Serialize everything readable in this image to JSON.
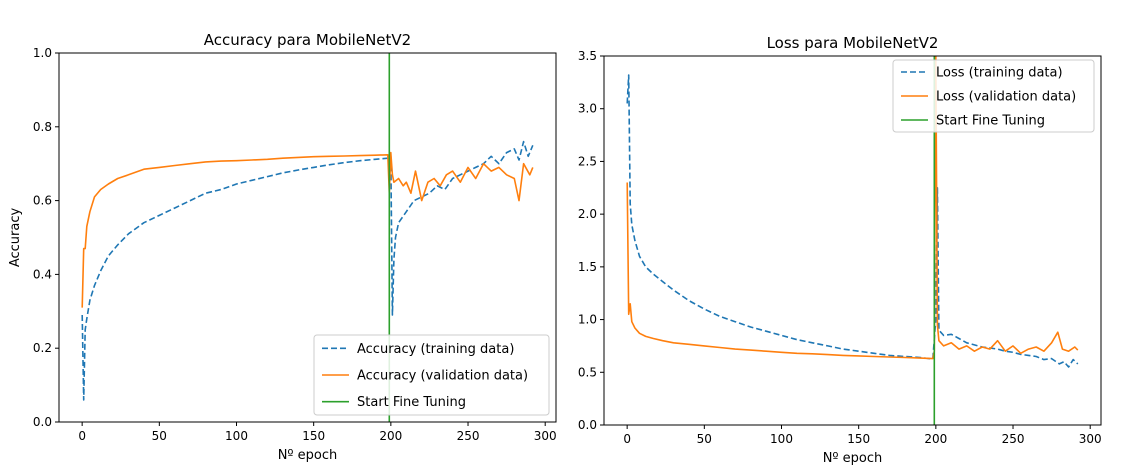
{
  "chart_data": [
    {
      "type": "line",
      "title": "Accuracy para MobileNetV2",
      "xlabel": "Nº epoch",
      "ylabel": "Accuracy",
      "xlim": [
        -15,
        307
      ],
      "ylim": [
        0.0,
        1.0
      ],
      "xticks": [
        0,
        50,
        100,
        150,
        200,
        250,
        300
      ],
      "yticks": [
        0.0,
        0.2,
        0.4,
        0.6,
        0.8,
        1.0
      ],
      "ytick_format": "1",
      "grid": false,
      "legend_position": "lower-right",
      "series": [
        {
          "name": "Accuracy (training data)",
          "color": "#1f77b4",
          "dash": "dashed",
          "points": [
            [
              0,
              0.29
            ],
            [
              1,
              0.06
            ],
            [
              2,
              0.25
            ],
            [
              3,
              0.28
            ],
            [
              5,
              0.33
            ],
            [
              8,
              0.37
            ],
            [
              12,
              0.41
            ],
            [
              17,
              0.45
            ],
            [
              23,
              0.48
            ],
            [
              30,
              0.51
            ],
            [
              40,
              0.54
            ],
            [
              50,
              0.56
            ],
            [
              60,
              0.58
            ],
            [
              70,
              0.6
            ],
            [
              80,
              0.62
            ],
            [
              90,
              0.63
            ],
            [
              100,
              0.645
            ],
            [
              110,
              0.655
            ],
            [
              120,
              0.665
            ],
            [
              130,
              0.675
            ],
            [
              140,
              0.683
            ],
            [
              150,
              0.69
            ],
            [
              160,
              0.697
            ],
            [
              170,
              0.703
            ],
            [
              180,
              0.708
            ],
            [
              190,
              0.712
            ],
            [
              198,
              0.715
            ],
            [
              200,
              0.72
            ],
            [
              201,
              0.29
            ],
            [
              202,
              0.44
            ],
            [
              203,
              0.5
            ],
            [
              205,
              0.54
            ],
            [
              210,
              0.57
            ],
            [
              215,
              0.6
            ],
            [
              220,
              0.61
            ],
            [
              225,
              0.62
            ],
            [
              230,
              0.64
            ],
            [
              235,
              0.63
            ],
            [
              240,
              0.66
            ],
            [
              245,
              0.67
            ],
            [
              250,
              0.68
            ],
            [
              255,
              0.69
            ],
            [
              260,
              0.7
            ],
            [
              265,
              0.72
            ],
            [
              270,
              0.7
            ],
            [
              275,
              0.73
            ],
            [
              280,
              0.74
            ],
            [
              283,
              0.71
            ],
            [
              286,
              0.76
            ],
            [
              289,
              0.72
            ],
            [
              292,
              0.75
            ]
          ]
        },
        {
          "name": "Accuracy (validation data)",
          "color": "#ff7f0e",
          "dash": "solid",
          "points": [
            [
              0,
              0.31
            ],
            [
              1,
              0.47
            ],
            [
              2,
              0.47
            ],
            [
              3,
              0.53
            ],
            [
              5,
              0.57
            ],
            [
              8,
              0.61
            ],
            [
              12,
              0.63
            ],
            [
              17,
              0.645
            ],
            [
              23,
              0.66
            ],
            [
              30,
              0.67
            ],
            [
              40,
              0.685
            ],
            [
              50,
              0.69
            ],
            [
              60,
              0.695
            ],
            [
              70,
              0.7
            ],
            [
              80,
              0.705
            ],
            [
              90,
              0.707
            ],
            [
              100,
              0.708
            ],
            [
              110,
              0.71
            ],
            [
              120,
              0.712
            ],
            [
              130,
              0.715
            ],
            [
              140,
              0.717
            ],
            [
              150,
              0.719
            ],
            [
              160,
              0.72
            ],
            [
              170,
              0.721
            ],
            [
              180,
              0.722
            ],
            [
              190,
              0.723
            ],
            [
              198,
              0.724
            ],
            [
              199,
              0.62
            ],
            [
              200,
              0.73
            ],
            [
              201,
              0.67
            ],
            [
              202,
              0.65
            ],
            [
              205,
              0.66
            ],
            [
              208,
              0.64
            ],
            [
              210,
              0.65
            ],
            [
              213,
              0.62
            ],
            [
              216,
              0.68
            ],
            [
              220,
              0.6
            ],
            [
              224,
              0.65
            ],
            [
              228,
              0.66
            ],
            [
              232,
              0.64
            ],
            [
              236,
              0.67
            ],
            [
              240,
              0.68
            ],
            [
              245,
              0.65
            ],
            [
              250,
              0.69
            ],
            [
              255,
              0.66
            ],
            [
              260,
              0.7
            ],
            [
              265,
              0.68
            ],
            [
              270,
              0.69
            ],
            [
              275,
              0.67
            ],
            [
              280,
              0.66
            ],
            [
              283,
              0.6
            ],
            [
              286,
              0.7
            ],
            [
              290,
              0.67
            ],
            [
              292,
              0.69
            ]
          ]
        }
      ],
      "vlines": [
        {
          "name": "Start Fine Tuning",
          "x": 199,
          "color": "#2ca02c"
        }
      ]
    },
    {
      "type": "line",
      "title": "Loss para MobileNetV2",
      "xlabel": "Nº epoch",
      "ylabel": "",
      "xlim": [
        -15,
        307
      ],
      "ylim": [
        0.0,
        3.5
      ],
      "xticks": [
        0,
        50,
        100,
        150,
        200,
        250,
        300
      ],
      "yticks": [
        0.0,
        0.5,
        1.0,
        1.5,
        2.0,
        2.5,
        3.0,
        3.5
      ],
      "ytick_format": "1",
      "grid": false,
      "legend_position": "upper-right",
      "series": [
        {
          "name": "Loss (training data)",
          "color": "#1f77b4",
          "dash": "dashed",
          "points": [
            [
              0,
              3.05
            ],
            [
              1,
              3.32
            ],
            [
              2,
              2.1
            ],
            [
              3,
              1.9
            ],
            [
              5,
              1.75
            ],
            [
              8,
              1.6
            ],
            [
              12,
              1.5
            ],
            [
              17,
              1.43
            ],
            [
              23,
              1.36
            ],
            [
              30,
              1.28
            ],
            [
              40,
              1.18
            ],
            [
              50,
              1.1
            ],
            [
              60,
              1.03
            ],
            [
              70,
              0.98
            ],
            [
              80,
              0.93
            ],
            [
              90,
              0.89
            ],
            [
              100,
              0.85
            ],
            [
              110,
              0.81
            ],
            [
              120,
              0.78
            ],
            [
              130,
              0.75
            ],
            [
              140,
              0.72
            ],
            [
              150,
              0.7
            ],
            [
              160,
              0.68
            ],
            [
              170,
              0.66
            ],
            [
              180,
              0.65
            ],
            [
              190,
              0.64
            ],
            [
              198,
              0.625
            ],
            [
              200,
              1.0
            ],
            [
              201,
              2.25
            ],
            [
              202,
              0.9
            ],
            [
              205,
              0.85
            ],
            [
              210,
              0.86
            ],
            [
              215,
              0.82
            ],
            [
              220,
              0.78
            ],
            [
              225,
              0.76
            ],
            [
              230,
              0.74
            ],
            [
              235,
              0.73
            ],
            [
              240,
              0.72
            ],
            [
              245,
              0.7
            ],
            [
              250,
              0.69
            ],
            [
              255,
              0.67
            ],
            [
              260,
              0.66
            ],
            [
              265,
              0.65
            ],
            [
              270,
              0.62
            ],
            [
              275,
              0.63
            ],
            [
              280,
              0.58
            ],
            [
              283,
              0.6
            ],
            [
              286,
              0.55
            ],
            [
              289,
              0.62
            ],
            [
              292,
              0.58
            ]
          ]
        },
        {
          "name": "Loss (validation data)",
          "color": "#ff7f0e",
          "dash": "solid",
          "points": [
            [
              0,
              2.3
            ],
            [
              1,
              1.05
            ],
            [
              2,
              1.15
            ],
            [
              3,
              0.98
            ],
            [
              5,
              0.92
            ],
            [
              8,
              0.87
            ],
            [
              12,
              0.84
            ],
            [
              17,
              0.82
            ],
            [
              23,
              0.8
            ],
            [
              30,
              0.78
            ],
            [
              40,
              0.765
            ],
            [
              50,
              0.75
            ],
            [
              60,
              0.735
            ],
            [
              70,
              0.72
            ],
            [
              80,
              0.71
            ],
            [
              90,
              0.7
            ],
            [
              100,
              0.69
            ],
            [
              110,
              0.68
            ],
            [
              120,
              0.675
            ],
            [
              130,
              0.668
            ],
            [
              140,
              0.66
            ],
            [
              150,
              0.655
            ],
            [
              160,
              0.65
            ],
            [
              170,
              0.645
            ],
            [
              180,
              0.64
            ],
            [
              190,
              0.635
            ],
            [
              198,
              0.63
            ],
            [
              199,
              0.7
            ],
            [
              200,
              3.5
            ],
            [
              201,
              0.95
            ],
            [
              202,
              0.8
            ],
            [
              205,
              0.75
            ],
            [
              210,
              0.78
            ],
            [
              215,
              0.72
            ],
            [
              220,
              0.75
            ],
            [
              225,
              0.7
            ],
            [
              230,
              0.74
            ],
            [
              235,
              0.72
            ],
            [
              240,
              0.8
            ],
            [
              245,
              0.7
            ],
            [
              250,
              0.75
            ],
            [
              255,
              0.68
            ],
            [
              260,
              0.72
            ],
            [
              265,
              0.74
            ],
            [
              270,
              0.7
            ],
            [
              275,
              0.78
            ],
            [
              279,
              0.88
            ],
            [
              282,
              0.72
            ],
            [
              286,
              0.7
            ],
            [
              290,
              0.74
            ],
            [
              292,
              0.71
            ]
          ]
        }
      ],
      "vlines": [
        {
          "name": "Start Fine Tuning",
          "x": 199,
          "color": "#2ca02c"
        }
      ]
    }
  ]
}
